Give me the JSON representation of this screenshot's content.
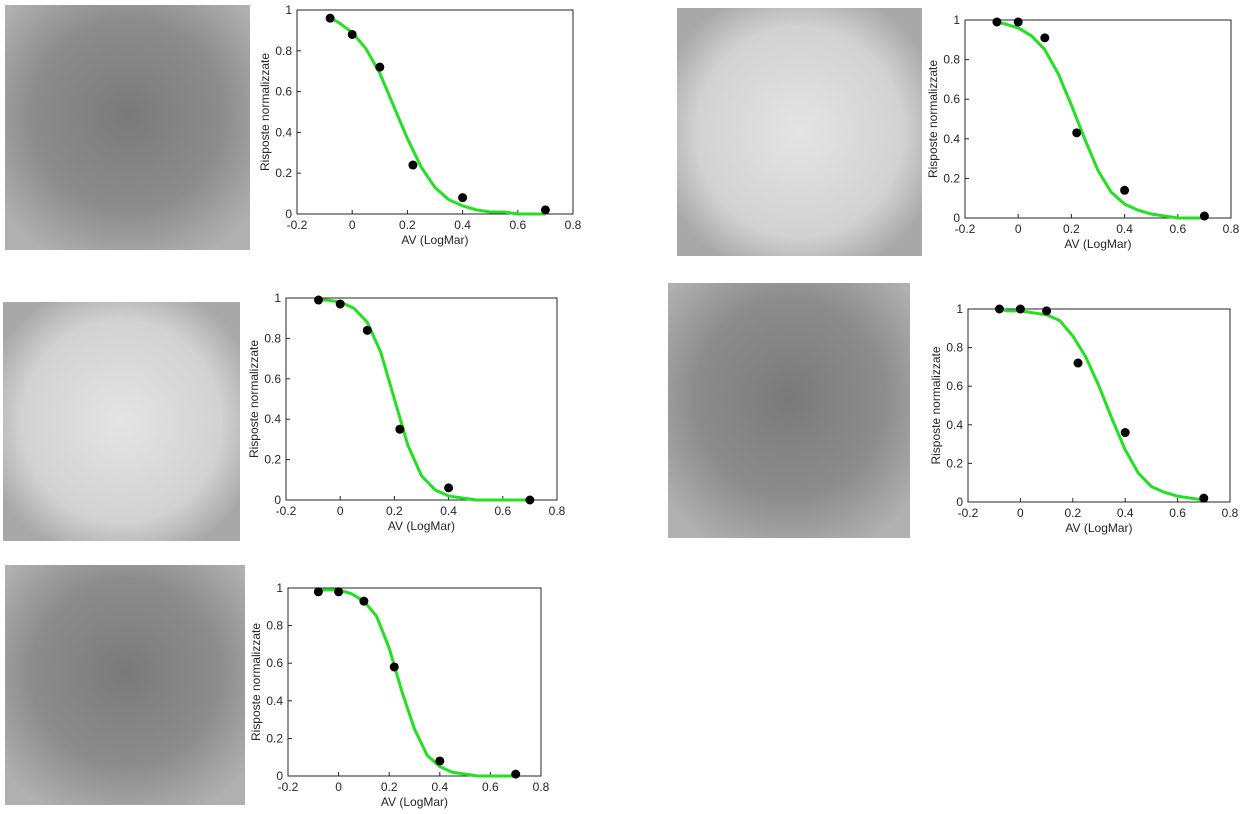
{
  "chart_data": [
    {
      "type": "scatter",
      "x_label": "AV (LogMar)",
      "y_label": "Risposte normalizzate",
      "xlim": [
        -0.2,
        0.8
      ],
      "ylim": [
        0,
        1
      ],
      "xticks": [
        -0.2,
        0,
        0.2,
        0.4,
        0.6,
        0.8
      ],
      "yticks": [
        0,
        0.2,
        0.4,
        0.6,
        0.8,
        1
      ],
      "series": [
        {
          "style": "marker",
          "color": "#000000",
          "x": [
            -0.08,
            0,
            0.1,
            0.22,
            0.4,
            0.7
          ],
          "values": [
            0.96,
            0.88,
            0.72,
            0.24,
            0.08,
            0.02
          ]
        },
        {
          "style": "line",
          "color": "#22e022",
          "x": [
            -0.08,
            -0.05,
            0,
            0.05,
            0.1,
            0.15,
            0.2,
            0.25,
            0.3,
            0.35,
            0.4,
            0.45,
            0.5,
            0.55,
            0.6,
            0.65,
            0.7
          ],
          "values": [
            0.96,
            0.94,
            0.89,
            0.81,
            0.69,
            0.53,
            0.37,
            0.23,
            0.13,
            0.07,
            0.04,
            0.02,
            0.01,
            0.01,
            0,
            0,
            0
          ]
        }
      ]
    },
    {
      "type": "scatter",
      "x_label": "AV (LogMar)",
      "y_label": "Risposte normalizzate",
      "xlim": [
        -0.2,
        0.8
      ],
      "ylim": [
        0,
        1
      ],
      "xticks": [
        -0.2,
        0,
        0.2,
        0.4,
        0.6,
        0.8
      ],
      "yticks": [
        0,
        0.2,
        0.4,
        0.6,
        0.8,
        1
      ],
      "series": [
        {
          "style": "marker",
          "color": "#000000",
          "x": [
            -0.08,
            0,
            0.1,
            0.22,
            0.4,
            0.7
          ],
          "values": [
            0.99,
            0.99,
            0.91,
            0.43,
            0.14,
            0.01
          ]
        },
        {
          "style": "line",
          "color": "#22e022",
          "x": [
            -0.08,
            -0.05,
            0,
            0.05,
            0.1,
            0.15,
            0.2,
            0.25,
            0.3,
            0.35,
            0.4,
            0.45,
            0.5,
            0.55,
            0.6,
            0.65,
            0.7
          ],
          "values": [
            0.99,
            0.98,
            0.96,
            0.92,
            0.85,
            0.73,
            0.57,
            0.4,
            0.24,
            0.13,
            0.07,
            0.04,
            0.02,
            0.01,
            0,
            0,
            0
          ]
        }
      ]
    },
    {
      "type": "scatter",
      "x_label": "AV (LogMar)",
      "y_label": "Risposte normalizzate",
      "xlim": [
        -0.2,
        0.8
      ],
      "ylim": [
        0,
        1
      ],
      "xticks": [
        -0.2,
        0,
        0.2,
        0.4,
        0.6,
        0.8
      ],
      "yticks": [
        0,
        0.2,
        0.4,
        0.6,
        0.8,
        1
      ],
      "series": [
        {
          "style": "marker",
          "color": "#000000",
          "x": [
            -0.08,
            0,
            0.1,
            0.22,
            0.4,
            0.7
          ],
          "values": [
            0.99,
            0.97,
            0.84,
            0.35,
            0.06,
            0
          ]
        },
        {
          "style": "line",
          "color": "#22e022",
          "x": [
            -0.08,
            -0.05,
            0,
            0.05,
            0.1,
            0.15,
            0.2,
            0.25,
            0.3,
            0.35,
            0.4,
            0.45,
            0.5,
            0.55,
            0.6,
            0.65,
            0.7
          ],
          "values": [
            0.99,
            0.99,
            0.98,
            0.95,
            0.88,
            0.73,
            0.5,
            0.27,
            0.12,
            0.05,
            0.02,
            0.01,
            0,
            0,
            0,
            0,
            0
          ]
        }
      ]
    },
    {
      "type": "scatter",
      "x_label": "AV (LogMar)",
      "y_label": "Risposte normalizzate",
      "xlim": [
        -0.2,
        0.8
      ],
      "ylim": [
        0,
        1
      ],
      "xticks": [
        -0.2,
        0,
        0.2,
        0.4,
        0.6,
        0.8
      ],
      "yticks": [
        0,
        0.2,
        0.4,
        0.6,
        0.8,
        1
      ],
      "series": [
        {
          "style": "marker",
          "color": "#000000",
          "x": [
            -0.08,
            0,
            0.1,
            0.22,
            0.4,
            0.7
          ],
          "values": [
            1,
            1,
            0.99,
            0.72,
            0.36,
            0.02
          ]
        },
        {
          "style": "line",
          "color": "#22e022",
          "x": [
            -0.08,
            -0.05,
            0,
            0.05,
            0.1,
            0.15,
            0.2,
            0.25,
            0.3,
            0.35,
            0.4,
            0.45,
            0.5,
            0.55,
            0.6,
            0.65,
            0.7
          ],
          "values": [
            1,
            0.99,
            0.99,
            0.98,
            0.97,
            0.94,
            0.86,
            0.75,
            0.6,
            0.43,
            0.27,
            0.15,
            0.08,
            0.05,
            0.03,
            0.02,
            0.01
          ]
        }
      ]
    },
    {
      "type": "scatter",
      "x_label": "AV (LogMar)",
      "y_label": "Risposte normalizzate",
      "xlim": [
        -0.2,
        0.8
      ],
      "ylim": [
        0,
        1
      ],
      "xticks": [
        -0.2,
        0,
        0.2,
        0.4,
        0.6,
        0.8
      ],
      "yticks": [
        0,
        0.2,
        0.4,
        0.6,
        0.8,
        1
      ],
      "series": [
        {
          "style": "marker",
          "color": "#000000",
          "x": [
            -0.08,
            0,
            0.1,
            0.22,
            0.4,
            0.7
          ],
          "values": [
            0.98,
            0.98,
            0.93,
            0.58,
            0.08,
            0.01
          ]
        },
        {
          "style": "line",
          "color": "#22e022",
          "x": [
            -0.08,
            -0.05,
            0,
            0.05,
            0.1,
            0.15,
            0.2,
            0.25,
            0.3,
            0.35,
            0.4,
            0.45,
            0.5,
            0.55,
            0.6,
            0.65,
            0.7
          ],
          "values": [
            0.99,
            0.99,
            0.99,
            0.97,
            0.93,
            0.85,
            0.68,
            0.45,
            0.25,
            0.11,
            0.05,
            0.02,
            0.01,
            0,
            0,
            0,
            0
          ]
        }
      ]
    }
  ]
}
